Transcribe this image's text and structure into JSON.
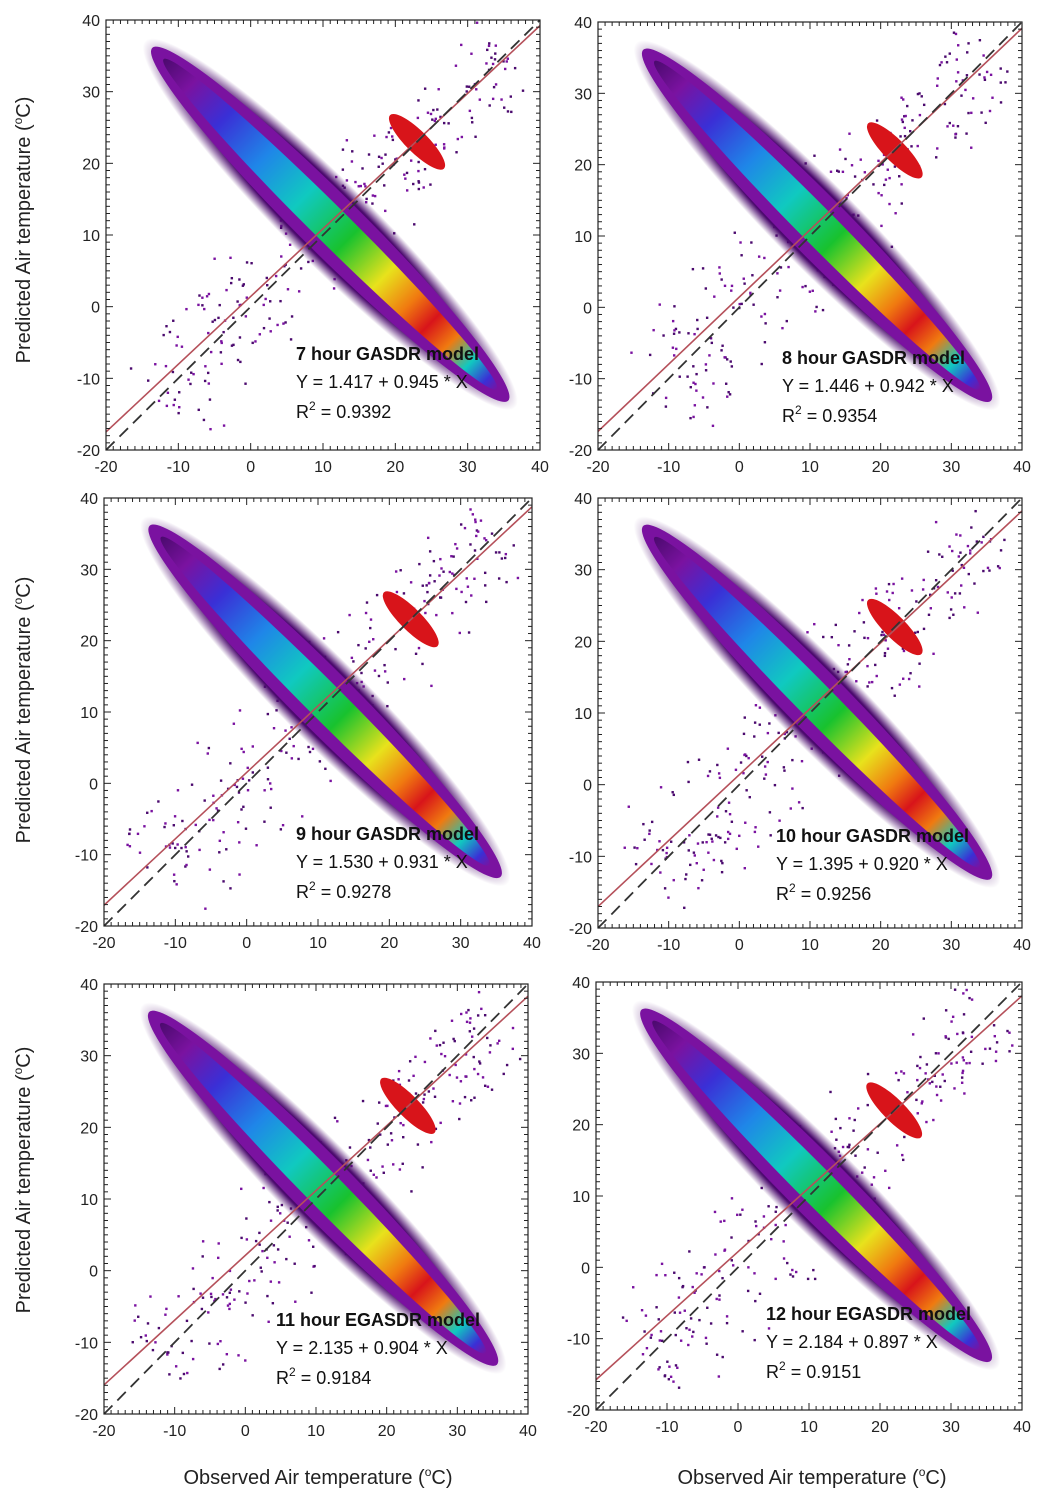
{
  "figure": {
    "x_axis_title": {
      "prefix": "Observed Air temperature (",
      "sup": "o",
      "suffix": "C)"
    },
    "y_axis_title": {
      "prefix": "Predicted Air temperature (",
      "sup": "o",
      "suffix": "C)"
    }
  },
  "colors": {
    "density_scale": [
      "#4b0a6e",
      "#7a12a0",
      "#3a2fd6",
      "#1f86e8",
      "#10c9c0",
      "#18c22e",
      "#e8e21c",
      "#f07a10",
      "#d8141a"
    ],
    "regression_line": "#b5505a",
    "one_to_one_line": "#333333",
    "frame": "#222222"
  },
  "chart_data": [
    {
      "type": "scatter",
      "style": "density-scatter",
      "xlim": [
        -20,
        40
      ],
      "ylim": [
        -20,
        40
      ],
      "xticks": [
        "-20",
        "-10",
        "0",
        "10",
        "20",
        "30",
        "40"
      ],
      "yticks": [
        "-20",
        "-10",
        "0",
        "10",
        "20",
        "30",
        "40"
      ],
      "annotation": {
        "title": "7 hour GASDR model",
        "equation": "Y = 1.417 + 0.945 * X",
        "r2_label": "R",
        "r2_sup": "2",
        "r2_value": " = 0.9392"
      },
      "regression": {
        "intercept": 1.417,
        "slope": 0.945
      },
      "one_to_one": true,
      "density_peak": [
        23,
        23
      ]
    },
    {
      "type": "scatter",
      "style": "density-scatter",
      "xlim": [
        -20,
        40
      ],
      "ylim": [
        -20,
        40
      ],
      "xticks": [
        "-20",
        "-10",
        "0",
        "10",
        "20",
        "30",
        "40"
      ],
      "yticks": [
        "-20",
        "-10",
        "0",
        "10",
        "20",
        "30",
        "40"
      ],
      "annotation": {
        "title": "8 hour GASDR model",
        "equation": "Y = 1.446 + 0.942 * X",
        "r2_label": "R",
        "r2_sup": "2",
        "r2_value": " = 0.9354"
      },
      "regression": {
        "intercept": 1.446,
        "slope": 0.942
      },
      "one_to_one": true,
      "density_peak": [
        22,
        22
      ]
    },
    {
      "type": "scatter",
      "style": "density-scatter",
      "xlim": [
        -20,
        40
      ],
      "ylim": [
        -20,
        40
      ],
      "xticks": [
        "-20",
        "-10",
        "0",
        "10",
        "20",
        "30",
        "40"
      ],
      "yticks": [
        "-20",
        "-10",
        "0",
        "10",
        "20",
        "30",
        "40"
      ],
      "annotation": {
        "title": "9 hour GASDR model",
        "equation": "Y = 1.530 + 0.931 * X",
        "r2_label": "R",
        "r2_sup": "2",
        "r2_value": " = 0.9278"
      },
      "regression": {
        "intercept": 1.53,
        "slope": 0.931
      },
      "one_to_one": true,
      "density_peak": [
        23,
        23
      ]
    },
    {
      "type": "scatter",
      "style": "density-scatter",
      "xlim": [
        -20,
        40
      ],
      "ylim": [
        -20,
        40
      ],
      "xticks": [
        "-20",
        "-10",
        "0",
        "10",
        "20",
        "30",
        "40"
      ],
      "yticks": [
        "-20",
        "-10",
        "0",
        "10",
        "20",
        "30",
        "40"
      ],
      "annotation": {
        "title": "10 hour GASDR model",
        "equation": "Y = 1.395 + 0.920 * X",
        "r2_label": "R",
        "r2_sup": "2",
        "r2_value": " = 0.9256"
      },
      "regression": {
        "intercept": 1.395,
        "slope": 0.92
      },
      "one_to_one": true,
      "density_peak": [
        22,
        22
      ]
    },
    {
      "type": "scatter",
      "style": "density-scatter",
      "xlim": [
        -20,
        40
      ],
      "ylim": [
        -20,
        40
      ],
      "xticks": [
        "-20",
        "-10",
        "0",
        "10",
        "20",
        "30",
        "40"
      ],
      "yticks": [
        "-20",
        "-10",
        "0",
        "10",
        "20",
        "30",
        "40"
      ],
      "annotation": {
        "title": "11 hour EGASDR model",
        "equation": "Y = 2.135 + 0.904 * X",
        "r2_label": "R",
        "r2_sup": "2",
        "r2_value": " = 0.9184"
      },
      "regression": {
        "intercept": 2.135,
        "slope": 0.904
      },
      "one_to_one": true,
      "density_peak": [
        23,
        23
      ]
    },
    {
      "type": "scatter",
      "style": "density-scatter",
      "xlim": [
        -20,
        40
      ],
      "ylim": [
        -20,
        40
      ],
      "xticks": [
        "-20",
        "-10",
        "0",
        "10",
        "20",
        "30",
        "40"
      ],
      "yticks": [
        "-20",
        "-10",
        "0",
        "10",
        "20",
        "30",
        "40"
      ],
      "annotation": {
        "title": "12 hour EGASDR model",
        "equation": "Y = 2.184 + 0.897 * X",
        "r2_label": "R",
        "r2_sup": "2",
        "r2_value": " = 0.9151"
      },
      "regression": {
        "intercept": 2.184,
        "slope": 0.897
      },
      "one_to_one": true,
      "density_peak": [
        22,
        22
      ]
    }
  ]
}
